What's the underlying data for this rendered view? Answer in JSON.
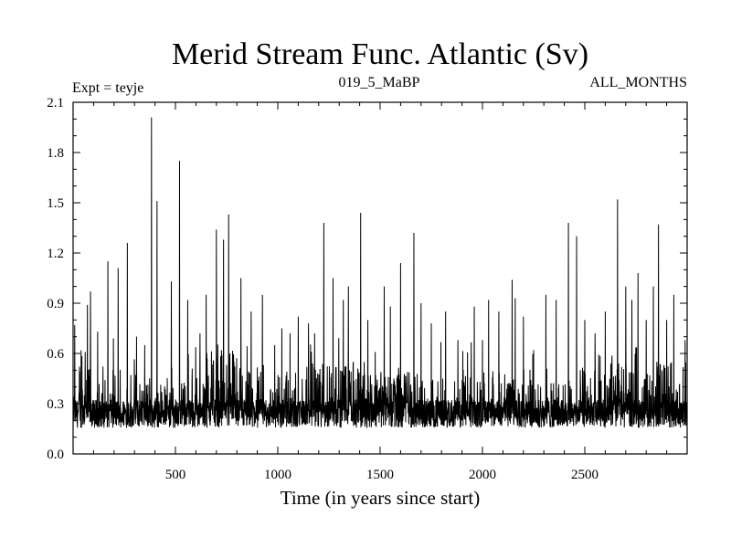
{
  "chart_data": {
    "type": "line",
    "title": "Merid Stream Func. Atlantic (Sv)",
    "subtitle_left": "Expt = teyje",
    "subtitle_center": "019_5_MaBP",
    "subtitle_right": "ALL_MONTHS",
    "xlabel": "Time (in years since start)",
    "ylabel": "",
    "xlim": [
      0,
      3000
    ],
    "ylim": [
      0.0,
      2.1
    ],
    "x_ticks": [
      500,
      1000,
      1500,
      2000,
      2500
    ],
    "x_tick_labels": [
      "500",
      "1000",
      "1500",
      "2000",
      "2500"
    ],
    "y_ticks": [
      0.0,
      0.3,
      0.6,
      0.9,
      1.2,
      1.5,
      1.8,
      2.1
    ],
    "y_tick_labels": [
      "0.0",
      "0.3",
      "0.6",
      "0.9",
      "1.2",
      "1.5",
      "1.8",
      "2.1"
    ],
    "grid": false,
    "series": [
      {
        "name": "Merid Stream Func. Atlantic",
        "baseline": {
          "center": 0.24,
          "spread": 0.07
        },
        "bursts": [
          {
            "x_start": 5,
            "x_end": 90,
            "level": 0.62
          },
          {
            "x_start": 650,
            "x_end": 800,
            "level": 0.62
          },
          {
            "x_start": 1020,
            "x_end": 1060,
            "level": 0.5
          },
          {
            "x_start": 1160,
            "x_end": 1460,
            "level": 0.55
          },
          {
            "x_start": 1470,
            "x_end": 1700,
            "level": 0.5
          },
          {
            "x_start": 2080,
            "x_end": 2200,
            "level": 0.45
          },
          {
            "x_start": 2600,
            "x_end": 2720,
            "level": 0.55
          },
          {
            "x_start": 2800,
            "x_end": 2930,
            "level": 0.55
          }
        ],
        "peaks": [
          {
            "x": 8,
            "y": 0.77
          },
          {
            "x": 70,
            "y": 0.89
          },
          {
            "x": 85,
            "y": 0.97
          },
          {
            "x": 120,
            "y": 0.73
          },
          {
            "x": 170,
            "y": 1.15
          },
          {
            "x": 220,
            "y": 1.11
          },
          {
            "x": 265,
            "y": 1.26
          },
          {
            "x": 310,
            "y": 0.7
          },
          {
            "x": 350,
            "y": 0.65
          },
          {
            "x": 383,
            "y": 2.01
          },
          {
            "x": 410,
            "y": 1.51
          },
          {
            "x": 480,
            "y": 1.03
          },
          {
            "x": 520,
            "y": 1.75
          },
          {
            "x": 560,
            "y": 0.92
          },
          {
            "x": 620,
            "y": 0.72
          },
          {
            "x": 650,
            "y": 0.95
          },
          {
            "x": 700,
            "y": 1.34
          },
          {
            "x": 735,
            "y": 1.28
          },
          {
            "x": 760,
            "y": 1.43
          },
          {
            "x": 820,
            "y": 1.05
          },
          {
            "x": 870,
            "y": 0.85
          },
          {
            "x": 925,
            "y": 0.95
          },
          {
            "x": 985,
            "y": 0.65
          },
          {
            "x": 1020,
            "y": 0.75
          },
          {
            "x": 1060,
            "y": 0.72
          },
          {
            "x": 1100,
            "y": 0.82
          },
          {
            "x": 1150,
            "y": 0.78
          },
          {
            "x": 1180,
            "y": 0.72
          },
          {
            "x": 1225,
            "y": 1.38
          },
          {
            "x": 1270,
            "y": 1.05
          },
          {
            "x": 1320,
            "y": 0.92
          },
          {
            "x": 1345,
            "y": 1.0
          },
          {
            "x": 1405,
            "y": 1.44
          },
          {
            "x": 1440,
            "y": 0.8
          },
          {
            "x": 1520,
            "y": 1.0
          },
          {
            "x": 1550,
            "y": 0.88
          },
          {
            "x": 1600,
            "y": 1.14
          },
          {
            "x": 1665,
            "y": 1.32
          },
          {
            "x": 1700,
            "y": 0.9
          },
          {
            "x": 1750,
            "y": 0.78
          },
          {
            "x": 1820,
            "y": 0.85
          },
          {
            "x": 1880,
            "y": 0.68
          },
          {
            "x": 1960,
            "y": 0.88
          },
          {
            "x": 2000,
            "y": 0.68
          },
          {
            "x": 2030,
            "y": 0.92
          },
          {
            "x": 2080,
            "y": 0.85
          },
          {
            "x": 2145,
            "y": 1.04
          },
          {
            "x": 2160,
            "y": 0.93
          },
          {
            "x": 2200,
            "y": 0.82
          },
          {
            "x": 2250,
            "y": 0.62
          },
          {
            "x": 2310,
            "y": 0.95
          },
          {
            "x": 2360,
            "y": 0.92
          },
          {
            "x": 2420,
            "y": 1.38
          },
          {
            "x": 2460,
            "y": 1.3
          },
          {
            "x": 2500,
            "y": 0.8
          },
          {
            "x": 2550,
            "y": 0.72
          },
          {
            "x": 2600,
            "y": 0.85
          },
          {
            "x": 2660,
            "y": 1.52
          },
          {
            "x": 2700,
            "y": 1.0
          },
          {
            "x": 2730,
            "y": 0.92
          },
          {
            "x": 2760,
            "y": 1.08
          },
          {
            "x": 2800,
            "y": 0.8
          },
          {
            "x": 2835,
            "y": 1.0
          },
          {
            "x": 2860,
            "y": 1.37
          },
          {
            "x": 2900,
            "y": 0.8
          },
          {
            "x": 2935,
            "y": 0.95
          },
          {
            "x": 2990,
            "y": 0.68
          }
        ]
      }
    ]
  }
}
